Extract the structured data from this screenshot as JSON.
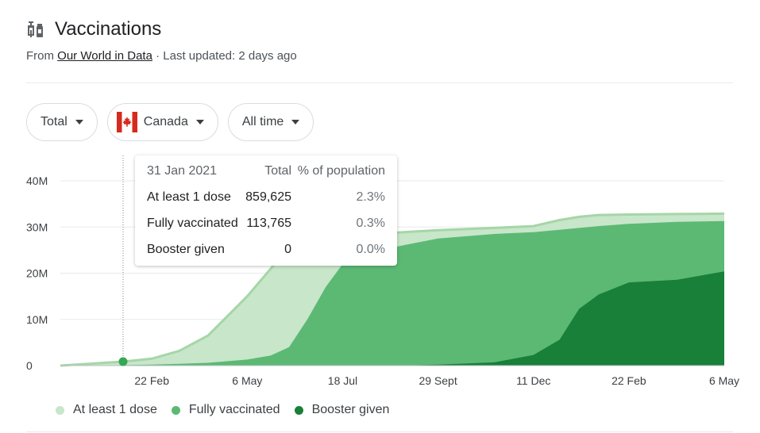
{
  "header": {
    "title": "Vaccinations",
    "icon": "syringe-vaccine-icon",
    "source_prefix": "From",
    "source_link": "Our World in Data",
    "updated": "· Last updated: 2 days ago"
  },
  "filters": {
    "metric": "Total",
    "country": "Canada",
    "country_flag": "canada-flag-icon",
    "range": "All time"
  },
  "colors": {
    "at_least_one": "#c8e6c9",
    "at_least_one_line": "#a5d6a7",
    "fully": "#5bb974",
    "booster": "#188038",
    "grid": "#e8eaed",
    "marker": "#34a853"
  },
  "tooltip": {
    "date": "31 Jan 2021",
    "col_total": "Total",
    "col_pct": "% of population",
    "rows": [
      {
        "label": "At least 1 dose",
        "total": "859,625",
        "pct": "2.3%"
      },
      {
        "label": "Fully vaccinated",
        "total": "113,765",
        "pct": "0.3%"
      },
      {
        "label": "Booster given",
        "total": "0",
        "pct": "0.0%"
      }
    ]
  },
  "chart_data": {
    "type": "area",
    "title": "",
    "xlabel": "",
    "ylabel": "",
    "y_ticks": [
      "0",
      "10M",
      "20M",
      "30M",
      "40M"
    ],
    "x_ticks": [
      "22 Feb",
      "6 May",
      "18 Jul",
      "29 Sept",
      "11 Dec",
      "22 Feb",
      "6 May"
    ],
    "ylim": [
      0,
      40
    ],
    "y_unit": "millions",
    "x": [
      "14 Dec 2020",
      "31 Jan 2021",
      "22 Feb 2021",
      "15 Mar 2021",
      "6 Apr 2021",
      "6 May 2021",
      "24 May 2021",
      "7 Jun 2021",
      "21 Jun 2021",
      "5 Jul 2021",
      "18 Jul 2021",
      "29 Aug 2021",
      "29 Sept 2021",
      "11 Nov 2021",
      "11 Dec 2021",
      "31 Dec 2021",
      "15 Jan 2022",
      "30 Jan 2022",
      "22 Feb 2022",
      "31 Mar 2022",
      "6 May 2022"
    ],
    "series": [
      {
        "name": "At least 1 dose",
        "values": [
          0.0,
          0.86,
          1.5,
          3.2,
          6.5,
          15.0,
          21.0,
          26.0,
          27.0,
          27.6,
          28.1,
          28.8,
          29.3,
          29.8,
          30.2,
          31.5,
          32.2,
          32.6,
          32.7,
          32.8,
          32.9
        ]
      },
      {
        "name": "Fully vaccinated",
        "values": [
          0.0,
          0.11,
          0.2,
          0.4,
          0.6,
          1.3,
          2.2,
          4.0,
          10.0,
          17.0,
          22.0,
          25.8,
          27.5,
          28.5,
          28.9,
          29.4,
          29.8,
          30.2,
          30.7,
          31.1,
          31.3
        ]
      },
      {
        "name": "Booster given",
        "values": [
          0.0,
          0.0,
          0.0,
          0.0,
          0.0,
          0.0,
          0.0,
          0.0,
          0.0,
          0.0,
          0.0,
          0.0,
          0.2,
          0.7,
          2.3,
          5.6,
          12.3,
          15.4,
          18.0,
          18.6,
          20.4
        ]
      }
    ],
    "legend": "bottom-left",
    "grid": true
  },
  "legend_items": [
    {
      "label": "At least 1 dose"
    },
    {
      "label": "Fully vaccinated"
    },
    {
      "label": "Booster given"
    }
  ]
}
